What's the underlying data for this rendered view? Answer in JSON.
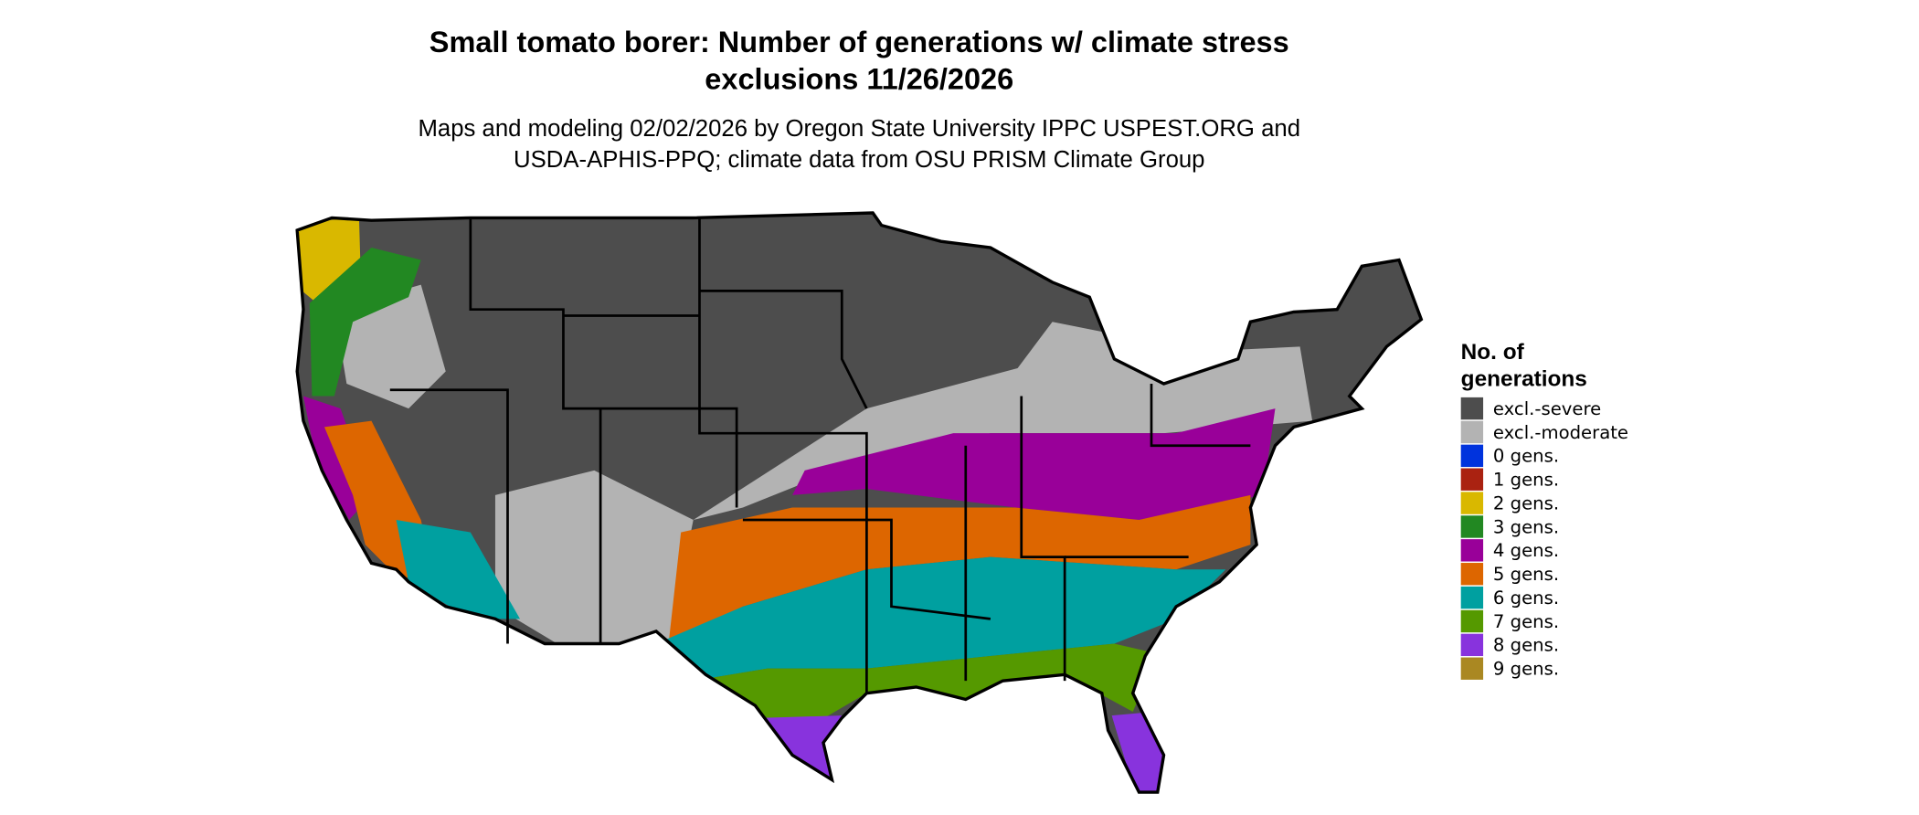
{
  "title": [
    "Small tomato borer: Number of generations w/ climate stress",
    "exclusions 11/26/2026"
  ],
  "subtitle": [
    "Maps and modeling 02/02/2026 by Oregon State University IPPC USPEST.ORG and",
    "USDA-APHIS-PPQ; climate data from OSU PRISM Climate Group"
  ],
  "legend": {
    "title": [
      "No. of",
      "generations"
    ],
    "items": [
      {
        "label": "excl.-severe",
        "color": "#4d4d4d"
      },
      {
        "label": "excl.-moderate",
        "color": "#b3b3b3"
      },
      {
        "label": "0 gens.",
        "color": "#0033dd"
      },
      {
        "label": "1 gens.",
        "color": "#aa2211"
      },
      {
        "label": "2 gens.",
        "color": "#d9b800"
      },
      {
        "label": "3 gens.",
        "color": "#228822"
      },
      {
        "label": "4 gens.",
        "color": "#990099"
      },
      {
        "label": "5 gens.",
        "color": "#dd6600"
      },
      {
        "label": "6 gens.",
        "color": "#00a0a0"
      },
      {
        "label": "7 gens.",
        "color": "#559900"
      },
      {
        "label": "8 gens.",
        "color": "#8833dd"
      },
      {
        "label": "9 gens.",
        "color": "#aa8822"
      }
    ]
  }
}
